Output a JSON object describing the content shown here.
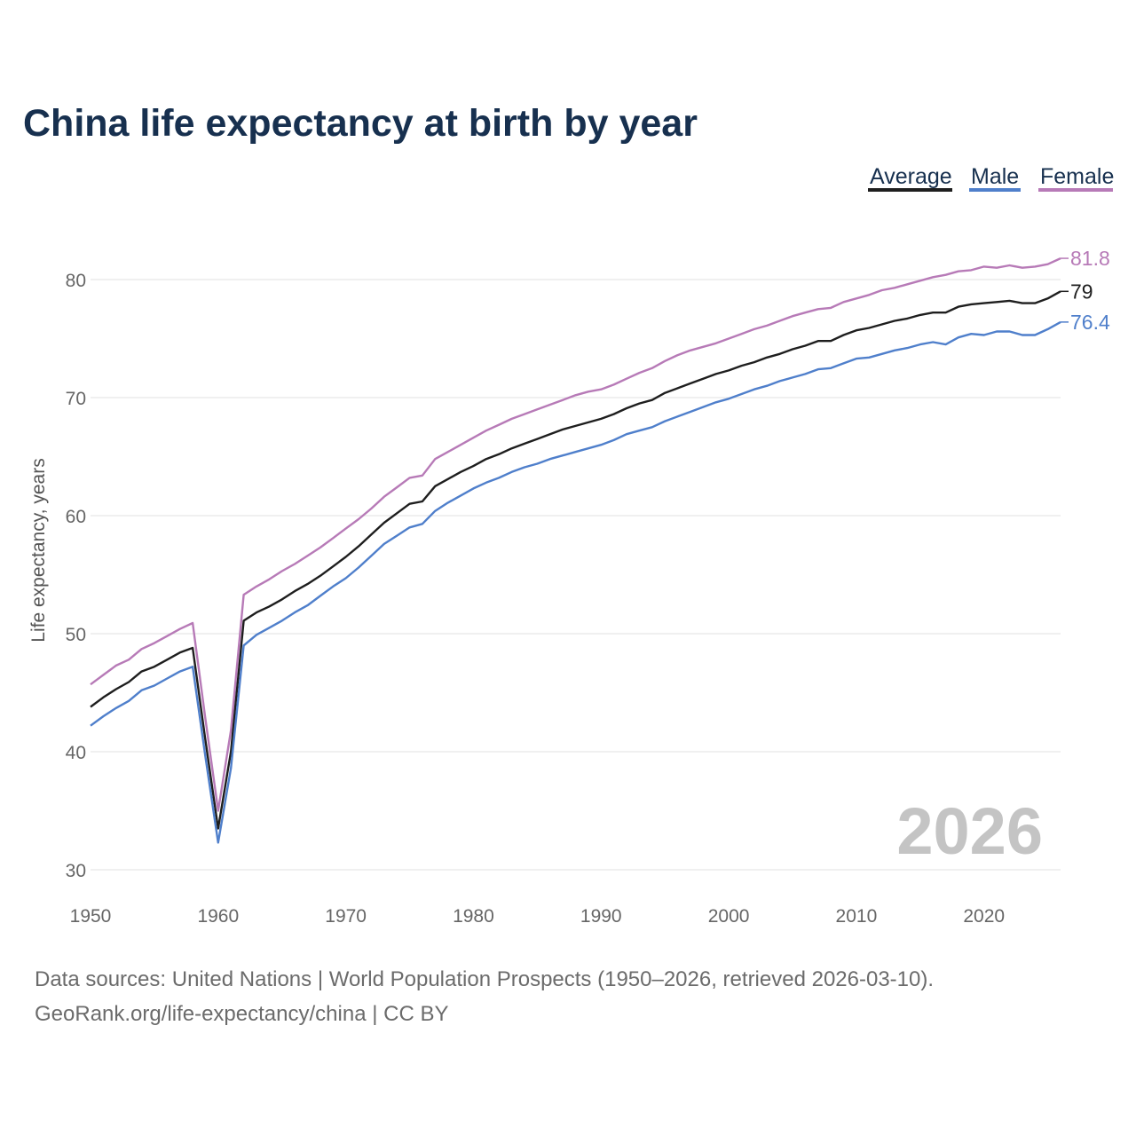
{
  "title": "China life expectancy at birth by year",
  "footer": {
    "line1": "Data sources: United Nations | World Population Prospects (1950–2026, retrieved 2026-03-10).",
    "line2": "GeoRank.org/life-expectancy/china | CC BY"
  },
  "year_label": "2026",
  "chart_data": {
    "type": "line",
    "title": "China life expectancy at birth by year",
    "xlabel": "",
    "ylabel": "Life expectancy, years",
    "xlim": [
      1950,
      2026
    ],
    "ylim": [
      30,
      80
    ],
    "grid": true,
    "legend_position": "top-right",
    "x_ticks": [
      "1950",
      "1960",
      "1970",
      "1980",
      "1990",
      "2000",
      "2010",
      "2020"
    ],
    "y_ticks": [
      "30",
      "40",
      "50",
      "60",
      "70",
      "80"
    ],
    "x_start": 1950,
    "series": [
      {
        "name": "Average",
        "color": "#1e1e1e",
        "end_label": "79",
        "values": [
          43.8,
          44.6,
          45.3,
          45.9,
          46.8,
          47.2,
          47.8,
          48.4,
          48.8,
          41.0,
          33.5,
          40.0,
          51.1,
          51.8,
          52.3,
          52.9,
          53.6,
          54.2,
          54.9,
          55.7,
          56.5,
          57.4,
          58.4,
          59.4,
          60.2,
          61.0,
          61.2,
          62.5,
          63.1,
          63.7,
          64.2,
          64.8,
          65.2,
          65.7,
          66.1,
          66.5,
          66.9,
          67.3,
          67.6,
          67.9,
          68.2,
          68.6,
          69.1,
          69.5,
          69.8,
          70.4,
          70.8,
          71.2,
          71.6,
          72.0,
          72.3,
          72.7,
          73.0,
          73.4,
          73.7,
          74.1,
          74.4,
          74.8,
          74.8,
          75.3,
          75.7,
          75.9,
          76.2,
          76.5,
          76.7,
          77.0,
          77.2,
          77.2,
          77.7,
          77.9,
          78.0,
          78.1,
          78.2,
          78.0,
          78.0,
          78.4,
          79.0
        ]
      },
      {
        "name": "Male",
        "color": "#4f7fcb",
        "end_label": "76.4",
        "values": [
          42.2,
          43.0,
          43.7,
          44.3,
          45.2,
          45.6,
          46.2,
          46.8,
          47.2,
          39.6,
          32.3,
          38.6,
          49.0,
          49.9,
          50.5,
          51.1,
          51.8,
          52.4,
          53.2,
          54.0,
          54.7,
          55.6,
          56.6,
          57.6,
          58.3,
          59.0,
          59.3,
          60.4,
          61.1,
          61.7,
          62.3,
          62.8,
          63.2,
          63.7,
          64.1,
          64.4,
          64.8,
          65.1,
          65.4,
          65.7,
          66.0,
          66.4,
          66.9,
          67.2,
          67.5,
          68.0,
          68.4,
          68.8,
          69.2,
          69.6,
          69.9,
          70.3,
          70.7,
          71.0,
          71.4,
          71.7,
          72.0,
          72.4,
          72.5,
          72.9,
          73.3,
          73.4,
          73.7,
          74.0,
          74.2,
          74.5,
          74.7,
          74.5,
          75.1,
          75.4,
          75.3,
          75.6,
          75.6,
          75.3,
          75.3,
          75.8,
          76.4
        ]
      },
      {
        "name": "Female",
        "color": "#b77ab7",
        "end_label": "81.8",
        "values": [
          45.7,
          46.5,
          47.3,
          47.8,
          48.7,
          49.2,
          49.8,
          50.4,
          50.9,
          42.8,
          35.0,
          41.8,
          53.3,
          54.0,
          54.6,
          55.3,
          55.9,
          56.6,
          57.3,
          58.1,
          58.9,
          59.7,
          60.6,
          61.6,
          62.4,
          63.2,
          63.4,
          64.8,
          65.4,
          66.0,
          66.6,
          67.2,
          67.7,
          68.2,
          68.6,
          69.0,
          69.4,
          69.8,
          70.2,
          70.5,
          70.7,
          71.1,
          71.6,
          72.1,
          72.5,
          73.1,
          73.6,
          74.0,
          74.3,
          74.6,
          75.0,
          75.4,
          75.8,
          76.1,
          76.5,
          76.9,
          77.2,
          77.5,
          77.6,
          78.1,
          78.4,
          78.7,
          79.1,
          79.3,
          79.6,
          79.9,
          80.2,
          80.4,
          80.7,
          80.8,
          81.1,
          81.0,
          81.2,
          81.0,
          81.1,
          81.3,
          81.8
        ]
      }
    ]
  }
}
